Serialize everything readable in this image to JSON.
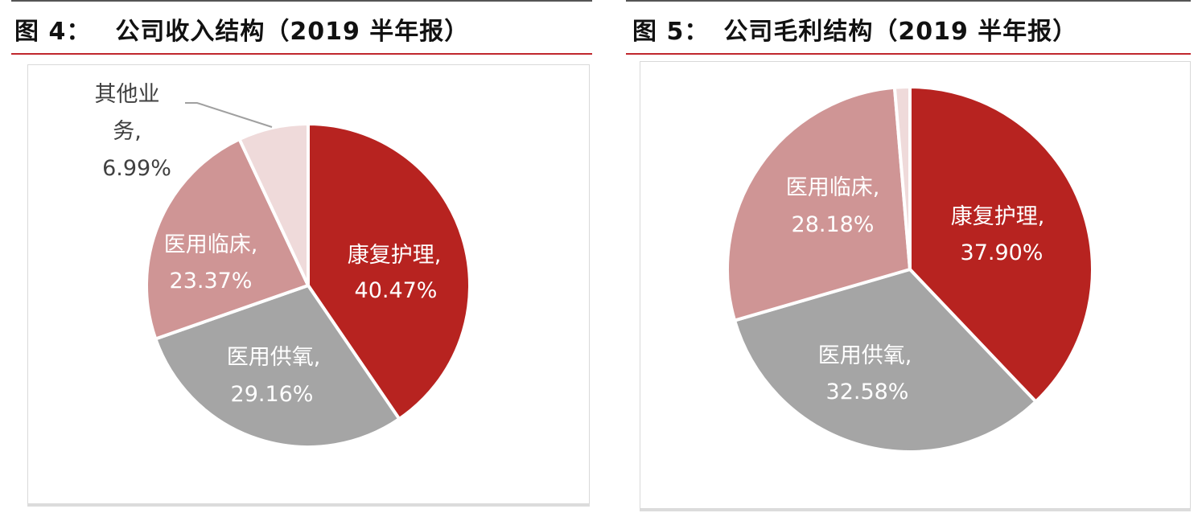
{
  "figures": [
    {
      "number_label": "图 4：",
      "title": "公司收入结构（2019 半年报）"
    },
    {
      "number_label": "图 5：",
      "title": "公司毛利结构（2019 半年报）"
    }
  ],
  "colors": {
    "kangfu": "#b72320",
    "gongyang": "#a5a5a5",
    "linchuang": "#cf9595",
    "qita": "#efdada",
    "title_rule": "#c0272d"
  },
  "chart_data": [
    {
      "type": "pie",
      "title": "公司收入结构（2019 半年报）",
      "categories": [
        "康复护理",
        "医用供氧",
        "医用临床",
        "其他业务"
      ],
      "values": [
        40.47,
        29.16,
        23.37,
        6.99
      ],
      "unit": "%",
      "labels": [
        {
          "name": "康复护理,",
          "value": "40.47%"
        },
        {
          "name": "医用供氧,",
          "value": "29.16%"
        },
        {
          "name": "医用临床,",
          "value": "23.37%"
        },
        {
          "name_line1": "其他业",
          "name_line2": "务,",
          "value": "6.99%"
        }
      ],
      "start_angle": "12 o'clock, clockwise",
      "legend": "none (data labels on slices)"
    },
    {
      "type": "pie",
      "title": "公司毛利结构（2019 半年报）",
      "categories": [
        "康复护理",
        "医用供氧",
        "医用临床",
        "其他业务"
      ],
      "values": [
        37.9,
        32.58,
        28.18,
        1.34
      ],
      "unit": "%",
      "labels": [
        {
          "name": "康复护理,",
          "value": "37.90%"
        },
        {
          "name": "医用供氧,",
          "value": "32.58%"
        },
        {
          "name": "医用临床,",
          "value": "28.18%"
        }
      ],
      "note": "其他业务 slice (~1.34%) is unlabeled",
      "start_angle": "12 o'clock, clockwise",
      "legend": "none (data labels on slices)"
    }
  ]
}
